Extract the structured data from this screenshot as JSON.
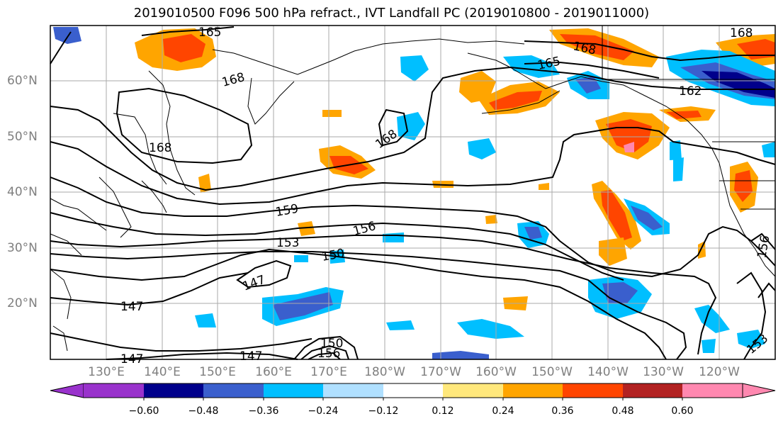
{
  "title": "2019010500 F096 500 hPa refract., IVT Landfall PC (2019010800 - 2019011000)",
  "lat_labels": [
    "60°N",
    "50°N",
    "40°N",
    "30°N",
    "20°N"
  ],
  "lon_labels": [
    "130°E",
    "140°E",
    "150°E",
    "160°E",
    "170°E",
    "180°W",
    "170°W",
    "160°W",
    "150°W",
    "140°W",
    "130°W",
    "120°W"
  ],
  "contour_labels": [
    "165",
    "168",
    "168",
    "165",
    "162",
    "168",
    "168",
    "168",
    "159",
    "156",
    "153",
    "150",
    "147",
    "147",
    "147",
    "150",
    "156",
    "147",
    "153",
    "156"
  ],
  "colorbar": {
    "ticks": [
      "−0.60",
      "−0.48",
      "−0.36",
      "−0.24",
      "−0.12",
      "0.12",
      "0.24",
      "0.36",
      "0.48",
      "0.60"
    ],
    "colors": [
      "#9932cc",
      "#00008b",
      "#3a5fcd",
      "#00bfff",
      "#b0e0ff",
      "#ffffff",
      "#ffe87c",
      "#ffa500",
      "#ff4500",
      "#b22222",
      "#ff88b0"
    ]
  },
  "fill_colors": {
    "light_yellow": "#ffe87c",
    "orange": "#ffa500",
    "red_orange": "#ff4500",
    "dark_red": "#b22222",
    "pink": "#ff88b0",
    "light_blue": "#b0e0ff",
    "sky_blue": "#00bfff",
    "royal_blue": "#3a5fcd",
    "navy": "#00008b"
  }
}
